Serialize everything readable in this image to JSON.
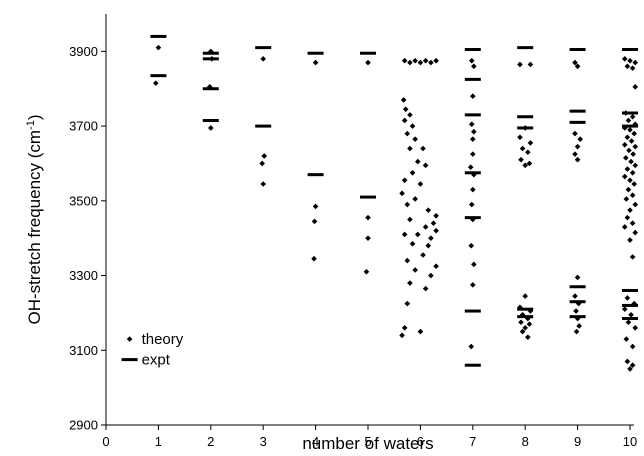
{
  "chart_data": {
    "type": "scatter",
    "title": "",
    "xlabel": "number of waters",
    "ylabel": "OH-stretch frequency (cm",
    "ylabel_sup": "-1",
    "ylabel_close": ")",
    "xlim": [
      0,
      10
    ],
    "ylim": [
      2900,
      4000
    ],
    "xticks": [
      0,
      1,
      2,
      3,
      4,
      5,
      6,
      7,
      8,
      9,
      10
    ],
    "yticks": [
      2900,
      3100,
      3300,
      3500,
      3700,
      3900
    ],
    "grid": false,
    "legend_position": "lower-left",
    "marker_color": "#000000",
    "series": [
      {
        "name": "theory",
        "marker": "diamond",
        "points": [
          {
            "x": 1.0,
            "y": 3910
          },
          {
            "x": 0.95,
            "y": 3815
          },
          {
            "x": 2.0,
            "y": 3900
          },
          {
            "x": 2.02,
            "y": 3880
          },
          {
            "x": 1.98,
            "y": 3805
          },
          {
            "x": 2.0,
            "y": 3695
          },
          {
            "x": 3.0,
            "y": 3880
          },
          {
            "x": 3.02,
            "y": 3620
          },
          {
            "x": 2.98,
            "y": 3600
          },
          {
            "x": 3.0,
            "y": 3545
          },
          {
            "x": 4.0,
            "y": 3870
          },
          {
            "x": 4.0,
            "y": 3485
          },
          {
            "x": 3.98,
            "y": 3445
          },
          {
            "x": 3.97,
            "y": 3345
          },
          {
            "x": 5.0,
            "y": 3870
          },
          {
            "x": 5.0,
            "y": 3455
          },
          {
            "x": 5.0,
            "y": 3400
          },
          {
            "x": 4.97,
            "y": 3310
          },
          {
            "x": 5.7,
            "y": 3875
          },
          {
            "x": 5.8,
            "y": 3870
          },
          {
            "x": 5.9,
            "y": 3875
          },
          {
            "x": 6.0,
            "y": 3870
          },
          {
            "x": 6.1,
            "y": 3875
          },
          {
            "x": 6.2,
            "y": 3870
          },
          {
            "x": 6.3,
            "y": 3875
          },
          {
            "x": 5.68,
            "y": 3770
          },
          {
            "x": 5.72,
            "y": 3745
          },
          {
            "x": 5.8,
            "y": 3730
          },
          {
            "x": 5.7,
            "y": 3715
          },
          {
            "x": 5.85,
            "y": 3700
          },
          {
            "x": 5.75,
            "y": 3680
          },
          {
            "x": 5.9,
            "y": 3665
          },
          {
            "x": 5.8,
            "y": 3640
          },
          {
            "x": 6.05,
            "y": 3640
          },
          {
            "x": 5.95,
            "y": 3605
          },
          {
            "x": 6.1,
            "y": 3595
          },
          {
            "x": 5.85,
            "y": 3575
          },
          {
            "x": 5.7,
            "y": 3555
          },
          {
            "x": 6.0,
            "y": 3545
          },
          {
            "x": 5.65,
            "y": 3520
          },
          {
            "x": 5.9,
            "y": 3505
          },
          {
            "x": 5.75,
            "y": 3490
          },
          {
            "x": 6.15,
            "y": 3475
          },
          {
            "x": 6.3,
            "y": 3460
          },
          {
            "x": 5.8,
            "y": 3450
          },
          {
            "x": 6.25,
            "y": 3440
          },
          {
            "x": 6.1,
            "y": 3430
          },
          {
            "x": 6.3,
            "y": 3420
          },
          {
            "x": 5.7,
            "y": 3410
          },
          {
            "x": 5.95,
            "y": 3410
          },
          {
            "x": 6.2,
            "y": 3400
          },
          {
            "x": 5.85,
            "y": 3385
          },
          {
            "x": 6.15,
            "y": 3380
          },
          {
            "x": 6.05,
            "y": 3355
          },
          {
            "x": 5.75,
            "y": 3340
          },
          {
            "x": 6.3,
            "y": 3325
          },
          {
            "x": 5.9,
            "y": 3315
          },
          {
            "x": 6.2,
            "y": 3300
          },
          {
            "x": 5.8,
            "y": 3280
          },
          {
            "x": 6.1,
            "y": 3265
          },
          {
            "x": 5.75,
            "y": 3225
          },
          {
            "x": 5.7,
            "y": 3160
          },
          {
            "x": 5.65,
            "y": 3140
          },
          {
            "x": 6.0,
            "y": 3150
          },
          {
            "x": 6.98,
            "y": 3875
          },
          {
            "x": 7.02,
            "y": 3860
          },
          {
            "x": 7.0,
            "y": 3780
          },
          {
            "x": 6.98,
            "y": 3705
          },
          {
            "x": 7.02,
            "y": 3685
          },
          {
            "x": 7.0,
            "y": 3665
          },
          {
            "x": 7.0,
            "y": 3625
          },
          {
            "x": 6.96,
            "y": 3590
          },
          {
            "x": 7.02,
            "y": 3570
          },
          {
            "x": 7.0,
            "y": 3530
          },
          {
            "x": 6.98,
            "y": 3490
          },
          {
            "x": 7.0,
            "y": 3450
          },
          {
            "x": 6.97,
            "y": 3380
          },
          {
            "x": 7.02,
            "y": 3330
          },
          {
            "x": 7.0,
            "y": 3275
          },
          {
            "x": 6.97,
            "y": 3110
          },
          {
            "x": 7.9,
            "y": 3865
          },
          {
            "x": 8.1,
            "y": 3865
          },
          {
            "x": 8.0,
            "y": 3695
          },
          {
            "x": 7.9,
            "y": 3670
          },
          {
            "x": 8.1,
            "y": 3655
          },
          {
            "x": 7.95,
            "y": 3640
          },
          {
            "x": 8.05,
            "y": 3630
          },
          {
            "x": 7.92,
            "y": 3610
          },
          {
            "x": 8.08,
            "y": 3600
          },
          {
            "x": 8.0,
            "y": 3595
          },
          {
            "x": 8.0,
            "y": 3245
          },
          {
            "x": 7.9,
            "y": 3215
          },
          {
            "x": 8.1,
            "y": 3205
          },
          {
            "x": 7.95,
            "y": 3195
          },
          {
            "x": 8.05,
            "y": 3185
          },
          {
            "x": 7.92,
            "y": 3175
          },
          {
            "x": 8.08,
            "y": 3170
          },
          {
            "x": 8.0,
            "y": 3160
          },
          {
            "x": 7.95,
            "y": 3150
          },
          {
            "x": 8.05,
            "y": 3135
          },
          {
            "x": 8.95,
            "y": 3870
          },
          {
            "x": 9.0,
            "y": 3860
          },
          {
            "x": 8.95,
            "y": 3680
          },
          {
            "x": 9.05,
            "y": 3665
          },
          {
            "x": 9.0,
            "y": 3645
          },
          {
            "x": 8.95,
            "y": 3625
          },
          {
            "x": 9.0,
            "y": 3610
          },
          {
            "x": 9.0,
            "y": 3295
          },
          {
            "x": 8.95,
            "y": 3245
          },
          {
            "x": 9.02,
            "y": 3225
          },
          {
            "x": 8.97,
            "y": 3205
          },
          {
            "x": 9.0,
            "y": 3185
          },
          {
            "x": 9.03,
            "y": 3165
          },
          {
            "x": 8.98,
            "y": 3150
          },
          {
            "x": 9.9,
            "y": 3880
          },
          {
            "x": 10.0,
            "y": 3875
          },
          {
            "x": 10.1,
            "y": 3870
          },
          {
            "x": 9.95,
            "y": 3860
          },
          {
            "x": 10.05,
            "y": 3855
          },
          {
            "x": 10.1,
            "y": 3805
          },
          {
            "x": 9.92,
            "y": 3735
          },
          {
            "x": 10.05,
            "y": 3725
          },
          {
            "x": 9.97,
            "y": 3715
          },
          {
            "x": 10.1,
            "y": 3705
          },
          {
            "x": 9.9,
            "y": 3695
          },
          {
            "x": 10.0,
            "y": 3690
          },
          {
            "x": 10.08,
            "y": 3680
          },
          {
            "x": 9.95,
            "y": 3670
          },
          {
            "x": 10.03,
            "y": 3660
          },
          {
            "x": 9.9,
            "y": 3650
          },
          {
            "x": 10.1,
            "y": 3645
          },
          {
            "x": 9.98,
            "y": 3635
          },
          {
            "x": 10.06,
            "y": 3625
          },
          {
            "x": 9.92,
            "y": 3615
          },
          {
            "x": 10.02,
            "y": 3605
          },
          {
            "x": 10.1,
            "y": 3595
          },
          {
            "x": 9.95,
            "y": 3585
          },
          {
            "x": 10.05,
            "y": 3575
          },
          {
            "x": 9.9,
            "y": 3565
          },
          {
            "x": 10.0,
            "y": 3555
          },
          {
            "x": 10.08,
            "y": 3545
          },
          {
            "x": 9.97,
            "y": 3530
          },
          {
            "x": 10.05,
            "y": 3515
          },
          {
            "x": 9.93,
            "y": 3505
          },
          {
            "x": 10.1,
            "y": 3490
          },
          {
            "x": 10.0,
            "y": 3475
          },
          {
            "x": 9.95,
            "y": 3455
          },
          {
            "x": 10.05,
            "y": 3440
          },
          {
            "x": 9.9,
            "y": 3430
          },
          {
            "x": 10.1,
            "y": 3415
          },
          {
            "x": 10.0,
            "y": 3395
          },
          {
            "x": 10.05,
            "y": 3350
          },
          {
            "x": 9.95,
            "y": 3240
          },
          {
            "x": 10.08,
            "y": 3225
          },
          {
            "x": 9.9,
            "y": 3210
          },
          {
            "x": 10.02,
            "y": 3195
          },
          {
            "x": 9.97,
            "y": 3175
          },
          {
            "x": 10.1,
            "y": 3160
          },
          {
            "x": 9.93,
            "y": 3130
          },
          {
            "x": 10.05,
            "y": 3110
          },
          {
            "x": 9.95,
            "y": 3070
          },
          {
            "x": 10.05,
            "y": 3060
          },
          {
            "x": 10.0,
            "y": 3050
          }
        ]
      },
      {
        "name": "expt",
        "marker": "dash",
        "points": [
          {
            "x": 1,
            "y": 3940
          },
          {
            "x": 1,
            "y": 3835
          },
          {
            "x": 2,
            "y": 3895
          },
          {
            "x": 2,
            "y": 3880
          },
          {
            "x": 2,
            "y": 3800
          },
          {
            "x": 2,
            "y": 3715
          },
          {
            "x": 3,
            "y": 3910
          },
          {
            "x": 3,
            "y": 3700
          },
          {
            "x": 4,
            "y": 3895
          },
          {
            "x": 4,
            "y": 3570
          },
          {
            "x": 5,
            "y": 3895
          },
          {
            "x": 5,
            "y": 3510
          },
          {
            "x": 7,
            "y": 3905
          },
          {
            "x": 7,
            "y": 3825
          },
          {
            "x": 7,
            "y": 3730
          },
          {
            "x": 7,
            "y": 3575
          },
          {
            "x": 7,
            "y": 3455
          },
          {
            "x": 7,
            "y": 3205
          },
          {
            "x": 7,
            "y": 3060
          },
          {
            "x": 8,
            "y": 3910
          },
          {
            "x": 8,
            "y": 3725
          },
          {
            "x": 8,
            "y": 3695
          },
          {
            "x": 8,
            "y": 3210
          },
          {
            "x": 8,
            "y": 3190
          },
          {
            "x": 9,
            "y": 3905
          },
          {
            "x": 9,
            "y": 3740
          },
          {
            "x": 9,
            "y": 3710
          },
          {
            "x": 9,
            "y": 3270
          },
          {
            "x": 9,
            "y": 3230
          },
          {
            "x": 9,
            "y": 3190
          },
          {
            "x": 10,
            "y": 3905
          },
          {
            "x": 10,
            "y": 3735
          },
          {
            "x": 10,
            "y": 3700
          },
          {
            "x": 10,
            "y": 3260
          },
          {
            "x": 10,
            "y": 3220
          },
          {
            "x": 10,
            "y": 3185
          }
        ]
      }
    ]
  }
}
